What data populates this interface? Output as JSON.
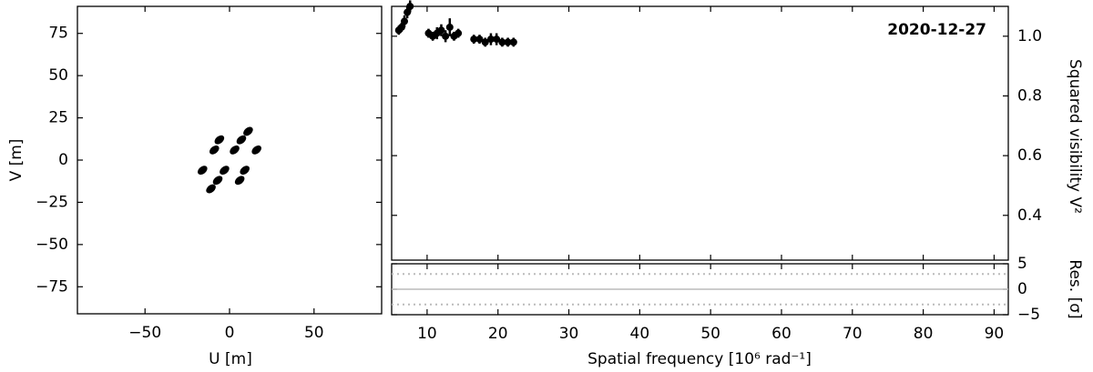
{
  "chart_data": [
    {
      "type": "scatter",
      "xlabel": "U [m]",
      "ylabel": "V [m]",
      "x": [
        11,
        7,
        3,
        16,
        -9,
        -6,
        -11,
        -7,
        -3,
        -16,
        9,
        6
      ],
      "y": [
        17,
        12,
        6,
        6,
        6,
        12,
        -17,
        -12,
        -6,
        -6,
        -6,
        -12
      ],
      "color": "#000000",
      "xlim": [
        -90,
        90
      ],
      "ylim": [
        -91,
        91
      ],
      "xticks": [
        {
          "value": -50,
          "label": "−50"
        },
        0,
        50
      ],
      "yticks": [
        {
          "value": -75,
          "label": "−75"
        },
        {
          "value": -50,
          "label": "−50"
        },
        {
          "value": -25,
          "label": "−25"
        },
        0,
        25,
        50,
        75
      ]
    },
    {
      "type": "errorbar",
      "ylabel": "Squared visibility V²",
      "annotation": "2020-12-27",
      "x": [
        6.0,
        6.4,
        6.8,
        7.2,
        7.6,
        10.2,
        10.8,
        11.4,
        12.0,
        12.6,
        13.2,
        13.8,
        14.4,
        16.6,
        17.4,
        18.2,
        19.0,
        19.8,
        20.6,
        21.4,
        22.2
      ],
      "values": [
        1.02,
        1.03,
        1.05,
        1.08,
        1.1,
        1.01,
        1.0,
        1.01,
        1.02,
        1.0,
        1.03,
        1.0,
        1.01,
        0.99,
        0.99,
        0.98,
        0.99,
        0.99,
        0.98,
        0.98,
        0.98
      ],
      "errors": [
        0.015,
        0.015,
        0.02,
        0.02,
        0.02,
        0.015,
        0.015,
        0.02,
        0.02,
        0.02,
        0.03,
        0.015,
        0.015,
        0.015,
        0.015,
        0.015,
        0.02,
        0.02,
        0.015,
        0.015,
        0.015
      ],
      "color": "#000000",
      "xlim": [
        5,
        92
      ],
      "ylim": [
        0.25,
        1.1
      ],
      "xticks": [
        10,
        20,
        30,
        40,
        50,
        60,
        70,
        80,
        90
      ],
      "yticks": [
        0.4,
        0.6,
        0.8,
        {
          "value": 1.0,
          "label": "1.0"
        }
      ]
    },
    {
      "type": "residual",
      "xlabel": "Spatial frequency [10⁶ rad⁻¹]",
      "ylabel": "Res. [σ]",
      "zero_line": 0,
      "sigma_lines": [
        -3,
        3
      ],
      "line_color": "#bbbbbb",
      "xlim": [
        5,
        92
      ],
      "ylim": [
        -5,
        5
      ],
      "xticks": [
        10,
        20,
        30,
        40,
        50,
        60,
        70,
        80,
        90
      ],
      "yticks": [
        {
          "value": -5,
          "label": "−5"
        },
        0,
        5
      ]
    }
  ]
}
